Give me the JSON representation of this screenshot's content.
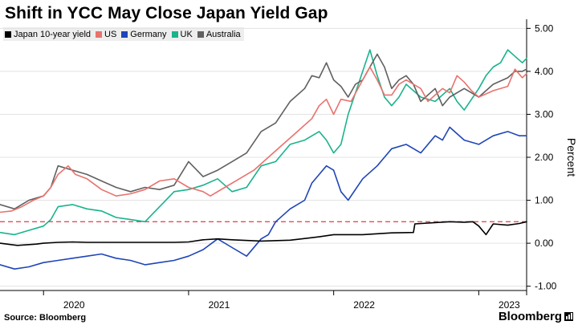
{
  "title": "Shift in YCC May Close Japan Yield Gap",
  "source": "Source: Bloomberg",
  "brand": "Bloomberg",
  "legend": [
    {
      "label": "Japan 10-year yield",
      "color": "#000000"
    },
    {
      "label": "US",
      "color": "#e8736e"
    },
    {
      "label": "Germany",
      "color": "#1f45b8"
    },
    {
      "label": "UK",
      "color": "#19b38c"
    },
    {
      "label": "Australia",
      "color": "#606060"
    }
  ],
  "chart_data": {
    "type": "line",
    "ylabel": "Percent",
    "y_axis_position": "right",
    "ylim": [
      -1.1,
      5.1
    ],
    "yticks": [
      "5.00",
      "4.00",
      "3.00",
      "2.00",
      "1.00",
      "0.00",
      "-1.00"
    ],
    "x_tick_labels": [
      {
        "label": "2020",
        "year": 2020.0
      },
      {
        "label": "2021",
        "year": 2021.0
      },
      {
        "label": "2022",
        "year": 2022.0
      },
      {
        "label": "2023",
        "year": 2023.0
      }
    ],
    "x_unit": "year",
    "xlim": [
      2019.7,
      2023.33
    ],
    "reference_line": {
      "value": 0.5,
      "color": "#e0505a",
      "style": "dashed"
    },
    "series": [
      {
        "name": "Japan 10-year yield",
        "color": "#000000",
        "x": [
          2019.7,
          2019.82,
          2019.95,
          2020.0,
          2020.1,
          2020.2,
          2020.3,
          2020.5,
          2020.7,
          2020.9,
          2021.0,
          2021.1,
          2021.2,
          2021.3,
          2021.5,
          2021.7,
          2021.9,
          2022.0,
          2022.2,
          2022.4,
          2022.55,
          2022.56,
          2022.8,
          2022.9,
          2022.96,
          2023.0,
          2023.05,
          2023.1,
          2023.2,
          2023.28,
          2023.33
        ],
        "values": [
          0.0,
          -0.05,
          -0.02,
          0.0,
          0.02,
          0.03,
          0.02,
          0.02,
          0.02,
          0.02,
          0.03,
          0.08,
          0.1,
          0.08,
          0.05,
          0.07,
          0.15,
          0.2,
          0.2,
          0.24,
          0.25,
          0.45,
          0.5,
          0.49,
          0.5,
          0.4,
          0.2,
          0.45,
          0.42,
          0.46,
          0.5
        ]
      },
      {
        "name": "US",
        "color": "#e8736e",
        "x": [
          2019.7,
          2019.78,
          2019.85,
          2019.93,
          2020.0,
          2020.05,
          2020.1,
          2020.17,
          2020.22,
          2020.3,
          2020.4,
          2020.5,
          2020.6,
          2020.7,
          2020.8,
          2020.9,
          2021.0,
          2021.1,
          2021.15,
          2021.25,
          2021.35,
          2021.45,
          2021.55,
          2021.65,
          2021.75,
          2021.85,
          2021.9,
          2021.95,
          2022.0,
          2022.05,
          2022.12,
          2022.2,
          2022.25,
          2022.3,
          2022.35,
          2022.4,
          2022.45,
          2022.5,
          2022.55,
          2022.6,
          2022.65,
          2022.7,
          2022.75,
          2022.8,
          2022.85,
          2022.9,
          2022.95,
          2023.0,
          2023.1,
          2023.2,
          2023.25,
          2023.3,
          2023.33
        ],
        "values": [
          0.72,
          0.75,
          0.85,
          1.0,
          1.1,
          1.3,
          1.6,
          1.8,
          1.6,
          1.5,
          1.25,
          1.1,
          1.15,
          1.25,
          1.45,
          1.5,
          1.3,
          1.2,
          1.1,
          1.3,
          1.5,
          1.7,
          2.0,
          2.3,
          2.6,
          2.9,
          3.2,
          3.35,
          3.0,
          3.35,
          3.3,
          3.8,
          4.1,
          3.8,
          3.45,
          3.45,
          3.7,
          3.8,
          3.7,
          3.6,
          3.3,
          3.45,
          3.6,
          3.5,
          3.9,
          3.75,
          3.55,
          3.4,
          3.55,
          3.65,
          4.05,
          3.85,
          3.95
        ]
      },
      {
        "name": "Germany",
        "color": "#1f45b8",
        "x": [
          2019.7,
          2019.8,
          2019.9,
          2020.0,
          2020.1,
          2020.2,
          2020.3,
          2020.4,
          2020.5,
          2020.6,
          2020.7,
          2020.8,
          2020.9,
          2021.0,
          2021.1,
          2021.2,
          2021.3,
          2021.4,
          2021.5,
          2021.55,
          2021.6,
          2021.7,
          2021.8,
          2021.85,
          2021.9,
          2021.95,
          2022.0,
          2022.05,
          2022.1,
          2022.2,
          2022.3,
          2022.35,
          2022.4,
          2022.5,
          2022.6,
          2022.7,
          2022.75,
          2022.8,
          2022.9,
          2023.0,
          2023.1,
          2023.2,
          2023.28,
          2023.33
        ],
        "values": [
          -0.5,
          -0.6,
          -0.55,
          -0.45,
          -0.4,
          -0.35,
          -0.3,
          -0.25,
          -0.35,
          -0.4,
          -0.5,
          -0.45,
          -0.4,
          -0.3,
          -0.15,
          0.1,
          -0.1,
          -0.3,
          0.1,
          0.2,
          0.5,
          0.8,
          1.0,
          1.4,
          1.6,
          1.8,
          1.7,
          1.2,
          1.0,
          1.5,
          1.8,
          2.0,
          2.2,
          2.3,
          2.1,
          2.5,
          2.4,
          2.7,
          2.4,
          2.3,
          2.5,
          2.6,
          2.5,
          2.5
        ]
      },
      {
        "name": "UK",
        "color": "#19b38c",
        "x": [
          2019.7,
          2019.8,
          2019.9,
          2020.0,
          2020.05,
          2020.1,
          2020.2,
          2020.3,
          2020.4,
          2020.5,
          2020.6,
          2020.7,
          2020.8,
          2020.9,
          2021.0,
          2021.1,
          2021.2,
          2021.3,
          2021.4,
          2021.5,
          2021.6,
          2021.7,
          2021.8,
          2021.9,
          2021.95,
          2022.0,
          2022.05,
          2022.1,
          2022.15,
          2022.2,
          2022.25,
          2022.3,
          2022.35,
          2022.4,
          2022.45,
          2022.5,
          2022.6,
          2022.7,
          2022.8,
          2022.85,
          2022.9,
          2023.0,
          2023.05,
          2023.1,
          2023.15,
          2023.2,
          2023.25,
          2023.3,
          2023.33
        ],
        "values": [
          0.25,
          0.2,
          0.3,
          0.4,
          0.55,
          0.85,
          0.9,
          0.8,
          0.75,
          0.6,
          0.55,
          0.5,
          0.85,
          1.2,
          1.25,
          1.35,
          1.5,
          1.2,
          1.3,
          1.8,
          1.9,
          2.3,
          2.4,
          2.6,
          2.4,
          2.1,
          2.3,
          3.0,
          3.5,
          4.0,
          4.5,
          3.9,
          3.4,
          3.2,
          3.4,
          3.7,
          3.4,
          3.3,
          3.6,
          3.3,
          3.1,
          3.6,
          3.9,
          4.1,
          4.2,
          4.5,
          4.35,
          4.2,
          4.3
        ]
      },
      {
        "name": "Australia",
        "color": "#606060",
        "x": [
          2019.7,
          2019.8,
          2019.9,
          2020.0,
          2020.05,
          2020.1,
          2020.2,
          2020.3,
          2020.4,
          2020.5,
          2020.6,
          2020.7,
          2020.8,
          2020.9,
          2021.0,
          2021.1,
          2021.2,
          2021.3,
          2021.4,
          2021.5,
          2021.6,
          2021.7,
          2021.8,
          2021.85,
          2021.9,
          2021.95,
          2022.0,
          2022.05,
          2022.1,
          2022.15,
          2022.2,
          2022.25,
          2022.3,
          2022.35,
          2022.4,
          2022.45,
          2022.5,
          2022.55,
          2022.6,
          2022.7,
          2022.75,
          2022.8,
          2022.9,
          2023.0,
          2023.1,
          2023.2,
          2023.25,
          2023.3,
          2023.33
        ],
        "values": [
          0.9,
          0.8,
          1.0,
          1.1,
          1.3,
          1.8,
          1.7,
          1.6,
          1.45,
          1.3,
          1.2,
          1.3,
          1.25,
          1.35,
          1.9,
          1.55,
          1.7,
          1.9,
          2.1,
          2.6,
          2.8,
          3.3,
          3.6,
          3.9,
          3.85,
          4.2,
          3.8,
          3.65,
          3.4,
          3.7,
          3.8,
          4.1,
          4.4,
          4.1,
          3.6,
          3.8,
          3.9,
          3.7,
          3.3,
          3.6,
          3.2,
          3.4,
          3.6,
          3.4,
          3.7,
          3.85,
          4.0,
          4.0,
          4.05
        ]
      }
    ]
  }
}
